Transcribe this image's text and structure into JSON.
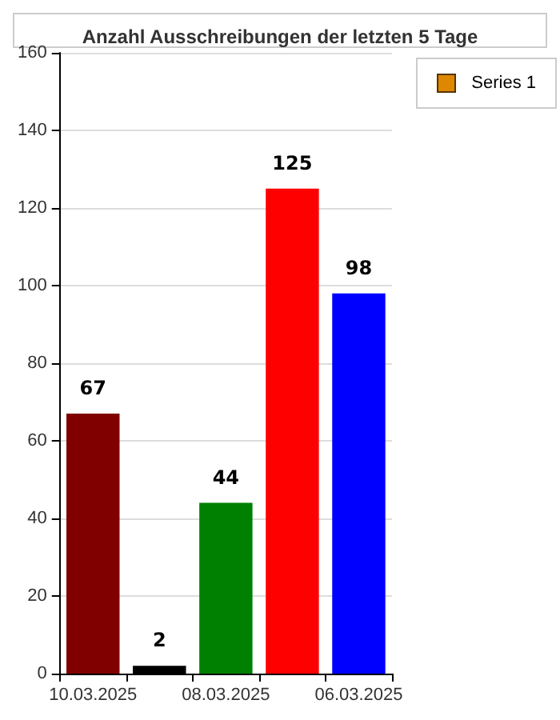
{
  "chart_data": {
    "type": "bar",
    "title": "Anzahl Ausschreibungen der letzten 5 Tage",
    "categories": [
      "10.03.2025",
      null,
      "08.03.2025",
      null,
      "06.03.2025"
    ],
    "series": [
      {
        "name": "Series 1",
        "color": "#dd8800",
        "values": [
          67,
          2,
          44,
          125,
          98
        ],
        "colors": [
          "#800000",
          "#000000",
          "#008000",
          "#ff0000",
          "#0000ff"
        ]
      }
    ],
    "ylim": [
      0,
      160
    ],
    "yticks": [
      0,
      20,
      40,
      60,
      80,
      100,
      120,
      140,
      160
    ],
    "grid": "y",
    "legend": "top right",
    "data_labels": true
  }
}
